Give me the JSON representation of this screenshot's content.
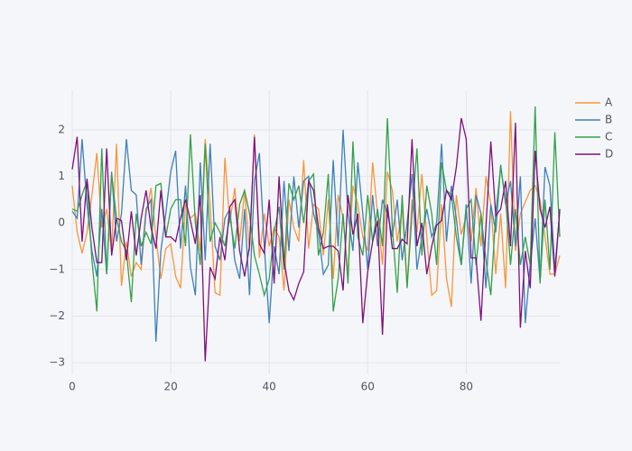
{
  "chart_data": {
    "type": "line",
    "x": [
      0,
      1,
      2,
      3,
      4,
      5,
      6,
      7,
      8,
      9,
      10,
      11,
      12,
      13,
      14,
      15,
      16,
      17,
      18,
      19,
      20,
      21,
      22,
      23,
      24,
      25,
      26,
      27,
      28,
      29,
      30,
      31,
      32,
      33,
      34,
      35,
      36,
      37,
      38,
      39,
      40,
      41,
      42,
      43,
      44,
      45,
      46,
      47,
      48,
      49,
      50,
      51,
      52,
      53,
      54,
      55,
      56,
      57,
      58,
      59,
      60,
      61,
      62,
      63,
      64,
      65,
      66,
      67,
      68,
      69,
      70,
      71,
      72,
      73,
      74,
      75,
      76,
      77,
      78,
      79,
      80,
      81,
      82,
      83,
      84,
      85,
      86,
      87,
      88,
      89,
      90,
      91,
      92,
      93,
      94,
      95,
      96,
      97,
      98,
      99
    ],
    "series": [
      {
        "name": "A",
        "color": "#f8963a",
        "values": [
          0.8,
          -0.2,
          -0.65,
          -0.2,
          0.6,
          1.5,
          -0.1,
          0.3,
          -0.6,
          1.7,
          -1.35,
          -0.4,
          -1.15,
          -0.85,
          -1.0,
          0.2,
          0.75,
          -0.3,
          -1.2,
          -0.55,
          -0.45,
          -1.15,
          -1.4,
          0.4,
          0.1,
          0.2,
          -0.6,
          1.8,
          0.4,
          -1.5,
          -1.55,
          1.4,
          0.0,
          0.75,
          -0.4,
          0.7,
          -0.6,
          1.9,
          -0.75,
          0.2,
          -0.5,
          -0.1,
          -0.3,
          -1.45,
          0.5,
          -0.1,
          -0.4,
          1.35,
          -0.55,
          0.4,
          0.3,
          -0.7,
          0.5,
          -1.2,
          0.6,
          0.1,
          -1.1,
          0.8,
          0.4,
          -0.3,
          -0.6,
          1.3,
          0.2,
          -0.9,
          1.1,
          0.7,
          -0.4,
          0.3,
          -1.35,
          0.5,
          -0.2,
          1.05,
          -0.3,
          -1.55,
          -1.45,
          0.4,
          -1.2,
          -1.8,
          0.6,
          -0.25,
          0.15,
          -0.4,
          0.75,
          -0.5,
          1.0,
          0.4,
          -1.1,
          0.2,
          -1.4,
          2.4,
          -0.6,
          0.2,
          0.45,
          0.7,
          0.8,
          0.5,
          -0.3,
          -1.1,
          -1.1,
          -0.7
        ]
      },
      {
        "name": "B",
        "color": "#3d80b9",
        "values": [
          0.25,
          0.1,
          1.8,
          0.4,
          -0.6,
          -1.15,
          0.3,
          -1.1,
          1.1,
          -0.4,
          0.2,
          1.8,
          0.7,
          0.6,
          -0.9,
          0.3,
          0.5,
          -2.55,
          -0.6,
          0.2,
          1.1,
          1.55,
          -0.55,
          0.8,
          -0.95,
          -1.55,
          1.3,
          -0.8,
          1.7,
          -0.5,
          -0.8,
          0.1,
          0.3,
          -0.8,
          -1.2,
          0.3,
          -1.55,
          0.9,
          1.5,
          -0.5,
          -2.15,
          -0.5,
          -1.1,
          0.9,
          -0.6,
          1.0,
          -0.1,
          0.9,
          1.0,
          0.2,
          -0.2,
          -1.1,
          -0.9,
          1.35,
          -0.5,
          2.0,
          0.2,
          -0.6,
          1.3,
          0.2,
          -1.0,
          0.6,
          -0.5,
          0.5,
          0.2,
          -0.3,
          0.5,
          -0.8,
          0.0,
          1.05,
          -1.0,
          -0.3,
          0.3,
          -0.3,
          0.0,
          1.7,
          -0.4,
          0.8,
          0.1,
          -0.9,
          0.4,
          -1.3,
          0.6,
          0.2,
          -1.4,
          0.4,
          -0.2,
          1.25,
          0.4,
          0.9,
          -0.5,
          1.0,
          -2.15,
          -0.9,
          0.1,
          -1.25,
          1.2,
          0.8,
          -1.0,
          0.25
        ]
      },
      {
        "name": "C",
        "color": "#33a04a",
        "values": [
          0.3,
          0.25,
          0.6,
          0.9,
          -0.8,
          -1.9,
          1.6,
          -1.1,
          1.05,
          0.1,
          -0.4,
          -0.6,
          -1.7,
          0.2,
          -0.5,
          -0.2,
          -0.45,
          0.8,
          0.85,
          -0.3,
          0.3,
          0.5,
          0.5,
          -0.5,
          1.9,
          0.0,
          -0.9,
          1.7,
          -0.4,
          0.0,
          -0.2,
          -0.5,
          0.15,
          -0.55,
          0.4,
          0.7,
          0.2,
          -0.7,
          -1.1,
          -1.55,
          -1.2,
          -0.2,
          0.35,
          -1.0,
          0.85,
          0.5,
          0.8,
          0.0,
          0.9,
          1.05,
          -0.7,
          -0.2,
          1.05,
          -1.9,
          -1.2,
          0.2,
          -1.3,
          1.75,
          -0.3,
          -0.7,
          0.6,
          -0.4,
          0.3,
          -0.5,
          2.25,
          -0.1,
          -1.5,
          0.6,
          -1.4,
          0.2,
          1.6,
          -0.7,
          0.8,
          0.2,
          -0.9,
          1.3,
          0.7,
          0.6,
          -0.3,
          -0.9,
          0.3,
          0.5,
          -0.9,
          0.2,
          -0.8,
          -1.55,
          0.2,
          1.2,
          0.5,
          -0.9,
          0.3,
          -0.9,
          -0.3,
          -0.9,
          2.5,
          -1.3,
          0.5,
          -1.0,
          1.95,
          -0.3
        ]
      },
      {
        "name": "D",
        "color": "#7f0f7e",
        "values": [
          1.15,
          1.85,
          -0.4,
          0.95,
          -0.1,
          -0.85,
          -0.85,
          1.6,
          -0.7,
          0.1,
          0.05,
          -0.8,
          0.25,
          -0.7,
          0.1,
          0.7,
          -0.1,
          -0.55,
          0.7,
          -0.3,
          -0.3,
          -0.4,
          0.1,
          0.5,
          0.05,
          -0.45,
          0.6,
          -2.97,
          -0.95,
          -1.2,
          -0.3,
          -0.8,
          0.35,
          0.5,
          -0.6,
          -1.15,
          -0.5,
          1.85,
          -0.45,
          -0.65,
          0.5,
          -1.3,
          1.0,
          -0.8,
          -1.45,
          -1.65,
          -1.3,
          -1.05,
          0.9,
          0.7,
          -0.1,
          -0.55,
          -0.5,
          -0.5,
          -0.6,
          -1.45,
          0.6,
          -0.25,
          0.2,
          -2.15,
          -1.05,
          -0.4,
          0.05,
          -2.4,
          0.4,
          -0.55,
          -0.55,
          -0.35,
          -0.45,
          1.8,
          -0.5,
          0.0,
          -1.1,
          -0.5,
          -0.05,
          0.05,
          0.7,
          0.5,
          1.2,
          2.25,
          1.8,
          -0.75,
          -0.75,
          -2.1,
          -0.1,
          1.75,
          0.15,
          0.3,
          0.9,
          -0.5,
          2.15,
          -2.25,
          -0.6,
          -1.4,
          1.55,
          0.3,
          -0.1,
          0.35,
          -1.15,
          0.3
        ]
      }
    ],
    "xlim": [
      0,
      99
    ],
    "xticks": [
      0,
      20,
      40,
      60,
      80
    ],
    "ylim": [
      -3.25,
      2.85
    ],
    "yticks": [
      {
        "value": -3,
        "label": "−3"
      },
      {
        "value": -2,
        "label": "−2"
      },
      {
        "value": -1,
        "label": "−1"
      },
      0,
      1,
      2
    ],
    "grid": true,
    "legend": "top-right"
  }
}
